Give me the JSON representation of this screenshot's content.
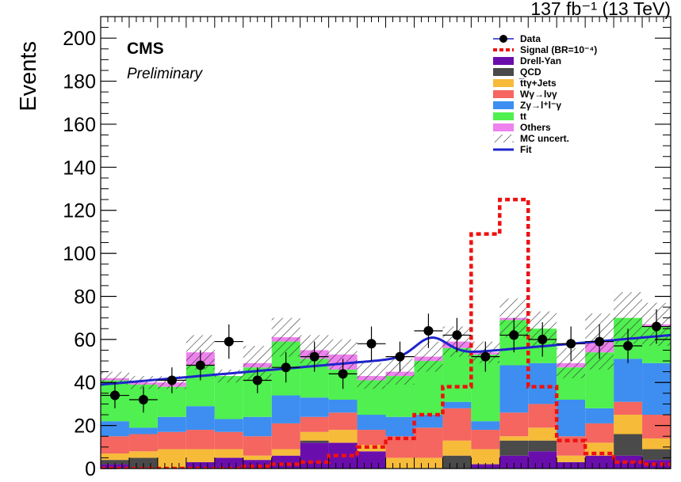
{
  "chart_data": {
    "type": "bar",
    "ylabel": "Events",
    "lumi_label": "137 fb⁻¹ (13 TeV)",
    "experiment": "CMS",
    "status": "Preliminary",
    "ylim": [
      0,
      210
    ],
    "y_ticks": [
      0,
      20,
      40,
      60,
      80,
      100,
      120,
      140,
      160,
      180,
      200
    ],
    "x_tick_labels_shown": false,
    "grid": false,
    "legend_placement": "top-right",
    "n_bins": 20,
    "colors": {
      "drell_yan": "#6a0dad",
      "qcd": "#4a4a4a",
      "ttgamma": "#f7bb3a",
      "wgamma": "#f4665f",
      "zgamma": "#3d8ef0",
      "tt": "#4ff04f",
      "others": "#ee82ee",
      "signal": "#ee1111",
      "fit": "#1f24cc",
      "data": "#000000"
    },
    "legend": [
      {
        "key": "data",
        "label": "Data",
        "style": "marker"
      },
      {
        "key": "signal",
        "label": "Signal (BR=10⁻⁴)",
        "style": "dashed"
      },
      {
        "key": "drell_yan",
        "label": "Drell-Yan",
        "style": "fill"
      },
      {
        "key": "qcd",
        "label": "QCD",
        "style": "fill"
      },
      {
        "key": "ttgamma",
        "label": "t̅tγ+Jets",
        "style": "fill"
      },
      {
        "key": "wgamma",
        "label": "Wγ→lνγ",
        "style": "fill"
      },
      {
        "key": "zgamma",
        "label": "Zγ→l⁺l⁻γ",
        "style": "fill"
      },
      {
        "key": "tt",
        "label": "tt",
        "style": "fill"
      },
      {
        "key": "others",
        "label": "Others",
        "style": "fill"
      },
      {
        "key": "unc",
        "label": "MC uncert.",
        "style": "hatch"
      },
      {
        "key": "fit",
        "label": "Fit",
        "style": "line"
      }
    ],
    "stack_order": [
      "drell_yan",
      "qcd",
      "ttgamma",
      "wgamma",
      "zgamma",
      "tt",
      "others"
    ],
    "series": [
      {
        "name": "Drell-Yan",
        "key": "drell_yan",
        "values": [
          2,
          0,
          0,
          3,
          5,
          4,
          6,
          12,
          12,
          8,
          0,
          0,
          0,
          2,
          6,
          8,
          3,
          6,
          6,
          4
        ]
      },
      {
        "name": "QCD",
        "key": "qcd",
        "values": [
          2,
          5,
          0,
          0,
          0,
          0,
          0,
          1,
          0,
          0,
          0,
          0,
          6,
          0,
          7,
          5,
          0,
          0,
          10,
          5
        ]
      },
      {
        "name": "t̅tγ+Jets",
        "key": "ttgamma",
        "values": [
          3,
          3,
          9,
          6,
          4,
          2,
          3,
          4,
          6,
          3,
          5,
          5,
          7,
          7,
          2,
          6,
          3,
          6,
          9,
          5
        ]
      },
      {
        "name": "Wγ→lνγ",
        "key": "wgamma",
        "values": [
          8,
          8,
          8,
          9,
          8,
          9,
          12,
          7,
          8,
          7,
          10,
          14,
          15,
          9,
          11,
          11,
          9,
          9,
          6,
          11
        ]
      },
      {
        "name": "Zγ→l⁺l⁻γ",
        "key": "zgamma",
        "values": [
          7,
          3,
          7,
          11,
          6,
          9,
          13,
          9,
          6,
          7,
          9,
          6,
          3,
          4,
          22,
          19,
          17,
          7,
          20,
          24
        ]
      },
      {
        "name": "tt",
        "key": "tt",
        "values": [
          19,
          20,
          14,
          19,
          20,
          23,
          25,
          18,
          14,
          16,
          19,
          25,
          25,
          31,
          21,
          16,
          15,
          26,
          19,
          17
        ]
      },
      {
        "name": "Others",
        "key": "others",
        "values": [
          1,
          1,
          2,
          6,
          0,
          2,
          2,
          4,
          7,
          2,
          2,
          2,
          3,
          1,
          1,
          0,
          2,
          5,
          0,
          1
        ]
      }
    ],
    "mc_uncertainty": [
      3,
      3,
      3,
      8,
      3,
      8,
      9,
      7,
      7,
      6,
      6,
      7,
      7,
      5,
      9,
      8,
      7,
      13,
      12,
      10
    ],
    "signal": {
      "name": "Signal (BR=10⁻⁴)",
      "values": [
        0,
        0,
        0,
        0,
        0,
        1,
        2,
        3,
        6,
        10,
        14,
        25,
        38,
        109,
        125,
        38,
        13,
        7,
        3,
        2
      ]
    },
    "data": {
      "name": "Data",
      "values": [
        34,
        32,
        41,
        48,
        59,
        41,
        47,
        52,
        44,
        58,
        52,
        64,
        62,
        52,
        62,
        60,
        58,
        59,
        57,
        66
      ],
      "errors": [
        6,
        6,
        6,
        7,
        8,
        6,
        7,
        7,
        7,
        8,
        7,
        8,
        8,
        7,
        8,
        8,
        8,
        8,
        8,
        8
      ]
    },
    "fit": {
      "name": "Fit",
      "background": {
        "start": 39,
        "end": 62
      },
      "peak": {
        "amplitude": 8.5,
        "center_bin": 11.6,
        "width_bins": 0.55
      }
    }
  }
}
